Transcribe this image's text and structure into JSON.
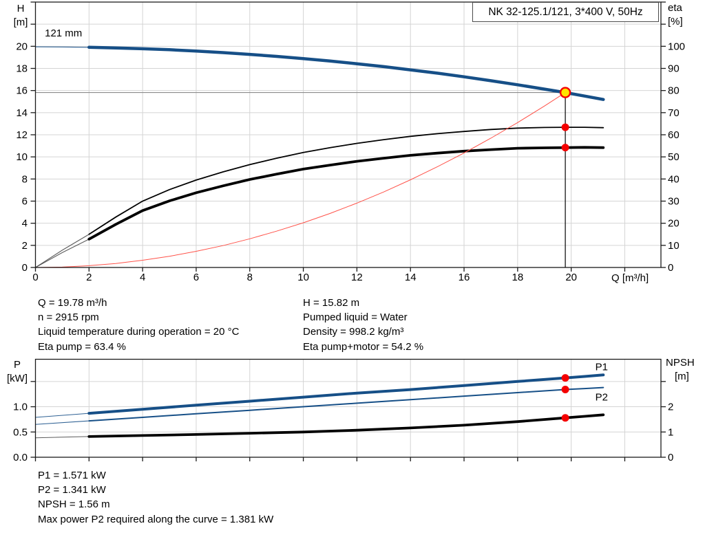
{
  "title_box": {
    "text": "NK 32-125.1/121, 3*400 V, 50Hz"
  },
  "info_top_left": [
    "Q = 19.78 m³/h",
    "n = 2915 rpm",
    "Liquid temperature during operation = 20 °C",
    "Eta pump = 63.4 %"
  ],
  "info_top_right": [
    "H = 15.82 m",
    "Pumped liquid = Water",
    "Density = 998.2 kg/m³",
    "Eta pump+motor = 54.2 %"
  ],
  "info_bottom": [
    "P1 = 1.571 kW",
    "P2 = 1.341 kW",
    "NPSH = 1.56 m",
    "Max power P2 required along the curve = 1.381 kW"
  ],
  "colors": {
    "curve_blue": "#164f87",
    "label_blue": "#2c64a0",
    "red": "#f40000",
    "red_light": "#ff5148",
    "yellow": "#ffe400",
    "grid": "#d4d4d4",
    "axis": "#1a1a1a",
    "ref_gray": "#8a8a8a",
    "thin_gray": "#4a4a4a",
    "black": "#000000"
  },
  "chart_data": [
    {
      "id": "head",
      "type": "line",
      "title": "NK 32-125.1/121, 3*400 V, 50Hz",
      "x_axis": {
        "label": "Q [m³/h]",
        "min": 0,
        "max": 23.35,
        "tick_step": 2,
        "label_max": 20,
        "decimals": 0
      },
      "y_left": {
        "name": "H",
        "unit": "[m]",
        "min": 0,
        "max": 24,
        "tick_step": 2,
        "label_max": 20,
        "decimals": 0
      },
      "y_right": {
        "name": "eta",
        "unit": "[%]",
        "min": 0,
        "max": 120,
        "tick_step": 10,
        "label_max": 100,
        "decimals": 0
      },
      "operating_point": {
        "Q": 19.78,
        "H": 15.82,
        "eta_pump": 63.4,
        "eta_pump_motor": 54.2
      },
      "series": [
        {
          "name": "eta-pump-motor-curve",
          "axis": "right",
          "color": "black",
          "width": 3.8,
          "thin_until": 2,
          "thin_color": "thin_gray",
          "thin_width": 1.1,
          "points": [
            [
              0,
              0
            ],
            [
              1,
              6.7
            ],
            [
              2,
              12.8
            ],
            [
              3,
              19.5
            ],
            [
              4,
              25.7
            ],
            [
              5,
              30.1
            ],
            [
              6,
              33.8
            ],
            [
              7,
              36.9
            ],
            [
              8,
              39.8
            ],
            [
              9,
              42.2
            ],
            [
              10,
              44.5
            ],
            [
              11,
              46.3
            ],
            [
              12,
              48
            ],
            [
              13,
              49.4
            ],
            [
              14,
              50.7
            ],
            [
              15,
              51.7
            ],
            [
              16,
              52.6
            ],
            [
              17,
              53.3
            ],
            [
              18,
              53.9
            ],
            [
              19,
              54.1
            ],
            [
              19.78,
              54.2
            ],
            [
              20.5,
              54.3
            ],
            [
              21.2,
              54.2
            ]
          ]
        },
        {
          "name": "eta-pump-curve",
          "axis": "right",
          "color": "black",
          "width": 1.8,
          "thin_until": 2,
          "thin_color": "thin_gray",
          "thin_width": 1.1,
          "points": [
            [
              0,
              0
            ],
            [
              1,
              7.8
            ],
            [
              2,
              15
            ],
            [
              3,
              22.8
            ],
            [
              4,
              30
            ],
            [
              5,
              35.2
            ],
            [
              6,
              39.5
            ],
            [
              7,
              43.2
            ],
            [
              8,
              46.5
            ],
            [
              9,
              49.4
            ],
            [
              10,
              52
            ],
            [
              11,
              54.2
            ],
            [
              12,
              56.1
            ],
            [
              13,
              57.8
            ],
            [
              14,
              59.3
            ],
            [
              15,
              60.5
            ],
            [
              16,
              61.5
            ],
            [
              17,
              62.4
            ],
            [
              18,
              63
            ],
            [
              19,
              63.3
            ],
            [
              19.78,
              63.4
            ],
            [
              20.5,
              63.4
            ],
            [
              21.2,
              63.2
            ]
          ]
        },
        {
          "name": "system-curve",
          "axis": "left",
          "color": "red_light",
          "width": 1,
          "points": [
            [
              0,
              0
            ],
            [
              1,
              0.04
            ],
            [
              2,
              0.16
            ],
            [
              3,
              0.36
            ],
            [
              4,
              0.65
            ],
            [
              5,
              1.01
            ],
            [
              6,
              1.46
            ],
            [
              7,
              1.98
            ],
            [
              8,
              2.59
            ],
            [
              9,
              3.28
            ],
            [
              10,
              4.04
            ],
            [
              11,
              4.89
            ],
            [
              12,
              5.82
            ],
            [
              13,
              6.83
            ],
            [
              14,
              7.93
            ],
            [
              15,
              9.1
            ],
            [
              16,
              10.35
            ],
            [
              17,
              11.69
            ],
            [
              18,
              13.1
            ],
            [
              19,
              14.6
            ],
            [
              19.78,
              15.82
            ]
          ]
        },
        {
          "name": "head-curve-121mm",
          "axis": "left",
          "color": "curve_blue",
          "width": 4.5,
          "thin_until": 2,
          "thin_color": "curve_blue",
          "thin_width": 1.1,
          "points": [
            [
              0,
              19.95
            ],
            [
              1,
              19.94
            ],
            [
              2,
              19.91
            ],
            [
              3,
              19.85
            ],
            [
              4,
              19.78
            ],
            [
              5,
              19.69
            ],
            [
              6,
              19.57
            ],
            [
              7,
              19.43
            ],
            [
              8,
              19.27
            ],
            [
              9,
              19.09
            ],
            [
              10,
              18.89
            ],
            [
              11,
              18.67
            ],
            [
              12,
              18.42
            ],
            [
              13,
              18.16
            ],
            [
              14,
              17.87
            ],
            [
              15,
              17.57
            ],
            [
              16,
              17.24
            ],
            [
              17,
              16.89
            ],
            [
              18,
              16.52
            ],
            [
              19,
              16.13
            ],
            [
              19.78,
              15.82
            ],
            [
              20.5,
              15.5
            ],
            [
              21.2,
              15.19
            ]
          ]
        }
      ],
      "ref_lines": [
        {
          "name": "duty-head-line",
          "type": "h",
          "axis": "left",
          "value": 15.82,
          "from": 0,
          "to": 19.78,
          "color": "ref_gray",
          "width": 1.2
        },
        {
          "name": "duty-flow-line",
          "type": "v",
          "axis": "left",
          "q": 19.78,
          "from": 0,
          "to": 15.82,
          "color": "black",
          "width": 1.2
        }
      ],
      "markers": [
        {
          "name": "duty-point",
          "q": 19.78,
          "value": 15.82,
          "axis": "left",
          "r": 7,
          "fill": "yellow",
          "stroke": "red",
          "stroke_width": 2.4,
          "interactable": true
        },
        {
          "name": "eta-pump-point",
          "q": 19.78,
          "value": 63.4,
          "axis": "right",
          "r": 5.5,
          "fill": "red"
        },
        {
          "name": "eta-pump-motor-point",
          "q": 19.78,
          "value": 54.2,
          "axis": "right",
          "r": 5.5,
          "fill": "red"
        }
      ],
      "point_labels": [
        {
          "text": "121 mm",
          "q": 0.35,
          "value": 20.9,
          "axis": "left",
          "color": "black",
          "anchor": "start"
        }
      ]
    },
    {
      "id": "power",
      "type": "line",
      "x_axis": {
        "label": "",
        "min": 0,
        "max": 23.35,
        "tick_step": 2,
        "label_max": -1,
        "decimals": 0
      },
      "y_left": {
        "name": "P",
        "unit": "[kW]",
        "min": 0,
        "max": 1.94,
        "tick_step": 0.5,
        "label_max": 1.0,
        "decimals": 1
      },
      "y_right": {
        "name": "NPSH",
        "unit": "[m]",
        "min": 0,
        "max": 3.88,
        "tick_step": 1,
        "label_max": 2,
        "decimals": 0
      },
      "operating_point": {
        "Q": 19.78,
        "P1": 1.571,
        "P2": 1.341,
        "NPSH": 1.56
      },
      "series": [
        {
          "name": "p1-curve",
          "axis": "left",
          "color": "curve_blue",
          "width": 4,
          "thin_until": 2,
          "thin_color": "curve_blue",
          "thin_width": 1,
          "points": [
            [
              0,
              0.79
            ],
            [
              2,
              0.87
            ],
            [
              4,
              0.95
            ],
            [
              6,
              1.03
            ],
            [
              8,
              1.11
            ],
            [
              10,
              1.19
            ],
            [
              12,
              1.27
            ],
            [
              14,
              1.34
            ],
            [
              16,
              1.42
            ],
            [
              18,
              1.5
            ],
            [
              19.78,
              1.571
            ],
            [
              20.5,
              1.6
            ],
            [
              21.2,
              1.63
            ]
          ]
        },
        {
          "name": "p2-curve",
          "axis": "left",
          "color": "curve_blue",
          "width": 2,
          "thin_until": 2,
          "thin_color": "curve_blue",
          "thin_width": 1,
          "points": [
            [
              0,
              0.65
            ],
            [
              2,
              0.72
            ],
            [
              4,
              0.79
            ],
            [
              6,
              0.86
            ],
            [
              8,
              0.93
            ],
            [
              10,
              1.0
            ],
            [
              12,
              1.07
            ],
            [
              14,
              1.14
            ],
            [
              16,
              1.21
            ],
            [
              18,
              1.28
            ],
            [
              19.78,
              1.341
            ],
            [
              20.5,
              1.36
            ],
            [
              21.2,
              1.381
            ]
          ]
        },
        {
          "name": "npsh-curve",
          "axis": "right",
          "color": "black",
          "width": 3.8,
          "thin_until": 2,
          "thin_color": "thin_gray",
          "thin_width": 1,
          "points": [
            [
              0,
              0.77
            ],
            [
              2,
              0.82
            ],
            [
              4,
              0.86
            ],
            [
              6,
              0.9
            ],
            [
              8,
              0.95
            ],
            [
              10,
              1.0
            ],
            [
              12,
              1.07
            ],
            [
              14,
              1.16
            ],
            [
              16,
              1.27
            ],
            [
              18,
              1.41
            ],
            [
              19.78,
              1.56
            ],
            [
              20.5,
              1.62
            ],
            [
              21.2,
              1.68
            ]
          ]
        }
      ],
      "ref_lines": [],
      "markers": [
        {
          "name": "p1-point",
          "q": 19.78,
          "value": 1.571,
          "axis": "left",
          "r": 5.5,
          "fill": "red"
        },
        {
          "name": "p2-point",
          "q": 19.78,
          "value": 1.341,
          "axis": "left",
          "r": 5.5,
          "fill": "red"
        },
        {
          "name": "npsh-point",
          "q": 19.78,
          "value": 1.56,
          "axis": "right",
          "r": 5.5,
          "fill": "red"
        }
      ],
      "point_labels": [
        {
          "text": "P1",
          "q": 20.9,
          "value": 1.72,
          "axis": "left",
          "color": "label_blue",
          "anchor": "start"
        },
        {
          "text": "P2",
          "q": 20.9,
          "value": 1.12,
          "axis": "left",
          "color": "label_blue",
          "anchor": "start"
        }
      ]
    }
  ]
}
